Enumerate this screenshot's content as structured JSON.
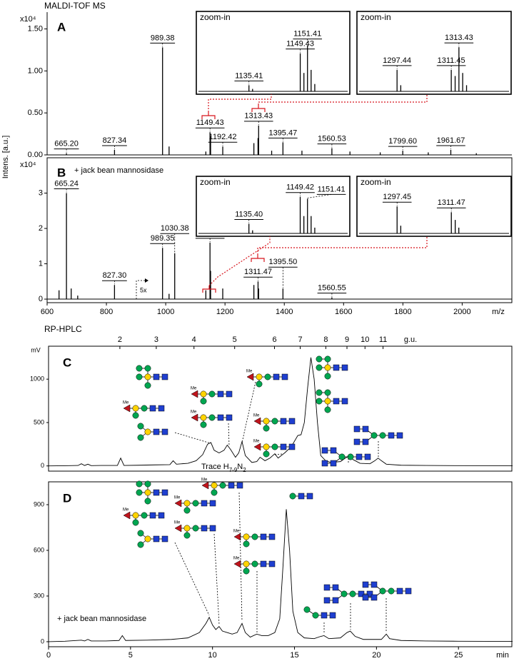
{
  "chart_data": [
    {
      "type": "spectrum",
      "panel": "A",
      "title": "MALDI-TOF MS",
      "ylabel": "Intens. [a.u.]",
      "y_multiplier": "x10⁴",
      "xlim": [
        600,
        2170
      ],
      "ylim": [
        0,
        1.7
      ],
      "yticks": [
        {
          "value": 0,
          "label": "0.00"
        },
        {
          "value": 0.5,
          "label": "0.50"
        },
        {
          "value": 1,
          "label": "1.00"
        },
        {
          "value": 1.5,
          "label": "1.50"
        }
      ],
      "color": "#000000",
      "x": [
        665.2,
        827.34,
        989.38,
        1011.4,
        1135.4,
        1149.43,
        1151.41,
        1192.42,
        1297.4,
        1311.4,
        1313.43,
        1357.4,
        1395.47,
        1459.5,
        1560.53,
        1621.5,
        1723.6,
        1799.6,
        1885.6,
        1961.67,
        2047.7
      ],
      "values": [
        0.02,
        0.06,
        1.28,
        0.1,
        0.04,
        0.27,
        0.22,
        0.1,
        0.14,
        0.2,
        0.35,
        0.05,
        0.15,
        0.05,
        0.08,
        0.04,
        0.03,
        0.05,
        0.03,
        0.06,
        0.02
      ],
      "peak_labels": [
        "665.20",
        "827.34",
        "989.38",
        null,
        null,
        "1149.43",
        null,
        "1192.42",
        null,
        null,
        "1313.43",
        null,
        "1395.47",
        null,
        "1560.53",
        null,
        null,
        "1799.60",
        null,
        "1961.67",
        null
      ],
      "insets": [
        {
          "title": "zoom-in",
          "xlim": [
            1122,
            1162
          ],
          "ylim": [
            0,
            1
          ],
          "x": [
            1135.41,
            1136.4,
            1149.43,
            1150.43,
            1151.41,
            1152.4,
            1153.4
          ],
          "values": [
            0.1,
            0.04,
            0.62,
            0.3,
            0.75,
            0.35,
            0.12
          ],
          "peak_labels": [
            "1135.41",
            null,
            "1149.43",
            null,
            "1151.41",
            null,
            null
          ]
        },
        {
          "title": "zoom-in",
          "xlim": [
            1288,
            1326
          ],
          "ylim": [
            0,
            1
          ],
          "x": [
            1297.44,
            1298.4,
            1311.45,
            1312.45,
            1313.43,
            1314.4,
            1315.4
          ],
          "values": [
            0.35,
            0.1,
            0.35,
            0.25,
            0.72,
            0.3,
            0.1
          ],
          "peak_labels": [
            "1297.44",
            null,
            "1311.45",
            null,
            "1313.43",
            null,
            null
          ]
        }
      ]
    },
    {
      "type": "spectrum",
      "panel": "B",
      "annotation": "+ jack bean mannosidase",
      "scale_note": "5x",
      "y_multiplier": "x10⁴",
      "xlim": [
        600,
        2170
      ],
      "ylim": [
        -0.1,
        4.0
      ],
      "xlabel": "m/z",
      "xticks": [
        600,
        800,
        1000,
        1200,
        1400,
        1600,
        1800,
        2000
      ],
      "yticks": [
        0,
        1,
        2,
        3
      ],
      "color": "#000000",
      "x": [
        640.2,
        665.24,
        681.2,
        703.2,
        827.3,
        989.35,
        1011.3,
        1030.38,
        1135.4,
        1149.42,
        1151.4,
        1192.4,
        1297.4,
        1311.47,
        1313.4,
        1395.5,
        1560.55
      ],
      "values": [
        0.25,
        3.0,
        0.3,
        0.1,
        0.4,
        1.45,
        0.15,
        1.3,
        0.25,
        1.6,
        0.8,
        0.3,
        0.4,
        0.5,
        0.3,
        0.3,
        0.05
      ],
      "peak_labels": [
        null,
        "665.24",
        null,
        null,
        "827.30",
        "989.35",
        null,
        "1030.38",
        null,
        "1149.42",
        null,
        null,
        null,
        "1311.47",
        null,
        "1395.50",
        "1560.55"
      ],
      "insets": [
        {
          "title": "zoom-in",
          "xlim": [
            1122,
            1162
          ],
          "ylim": [
            0,
            1
          ],
          "x": [
            1135.4,
            1136.4,
            1149.42,
            1150.42,
            1151.41,
            1152.4,
            1153.4
          ],
          "values": [
            0.25,
            0.08,
            0.95,
            0.45,
            0.9,
            0.45,
            0.15
          ],
          "peak_labels": [
            "1135.40",
            null,
            "1149.42",
            null,
            "1151.41",
            null,
            null
          ]
        },
        {
          "title": "zoom-in",
          "xlim": [
            1288,
            1326
          ],
          "ylim": [
            0,
            1
          ],
          "x": [
            1297.45,
            1298.4,
            1311.47,
            1312.47,
            1313.4
          ],
          "values": [
            0.7,
            0.2,
            0.55,
            0.35,
            0.15
          ],
          "peak_labels": [
            "1297.45",
            null,
            "1311.47",
            null,
            null
          ]
        }
      ]
    },
    {
      "type": "line",
      "panel": "C",
      "title": "RP-HPLC",
      "ylabel": "mV",
      "x2label": "g.u.",
      "mod_label": "Me",
      "annotation_parts": [
        "Trace H",
        "7-9",
        "N",
        "2"
      ],
      "xlim": [
        0,
        28.3
      ],
      "ylim": [
        -60,
        1380
      ],
      "yticks": [
        0,
        500,
        1000
      ],
      "x2ticks": [
        {
          "value": 4.35,
          "label": "2"
        },
        {
          "value": 6.57,
          "label": "3"
        },
        {
          "value": 8.87,
          "label": "4"
        },
        {
          "value": 11.35,
          "label": "5"
        },
        {
          "value": 13.78,
          "label": "6"
        },
        {
          "value": 15.35,
          "label": "7"
        },
        {
          "value": 16.91,
          "label": "8"
        },
        {
          "value": 18.2,
          "label": "9"
        },
        {
          "value": 19.3,
          "label": "10"
        },
        {
          "value": 20.4,
          "label": "11"
        }
      ],
      "color": "#000000",
      "x": [
        0,
        1,
        1.8,
        2.0,
        2.2,
        2.4,
        2.6,
        3.2,
        4.2,
        4.4,
        4.6,
        5.5,
        6.5,
        7.4,
        7.6,
        7.8,
        8.5,
        9.0,
        9.4,
        9.7,
        9.9,
        10.1,
        10.4,
        10.7,
        10.9,
        11.1,
        11.4,
        11.6,
        11.8,
        12.0,
        12.4,
        12.7,
        12.9,
        13.2,
        13.5,
        13.8,
        14.0,
        14.4,
        14.8,
        15.2,
        15.4,
        15.6,
        15.8,
        16.0,
        16.2,
        16.4,
        16.6,
        16.9,
        17.2,
        17.8,
        18.1,
        18.3,
        18.6,
        19.0,
        19.6,
        19.9,
        20.1,
        20.3,
        20.6,
        21.5,
        23,
        25,
        28.3
      ],
      "values": [
        0,
        2,
        5,
        25,
        5,
        20,
        3,
        5,
        5,
        90,
        5,
        8,
        12,
        15,
        60,
        20,
        30,
        60,
        130,
        250,
        270,
        180,
        150,
        180,
        240,
        190,
        100,
        150,
        280,
        120,
        40,
        50,
        100,
        60,
        90,
        140,
        90,
        150,
        220,
        350,
        360,
        500,
        900,
        1250,
        1000,
        500,
        120,
        60,
        40,
        50,
        90,
        110,
        70,
        30,
        25,
        60,
        90,
        60,
        20,
        8,
        5,
        3,
        2
      ]
    },
    {
      "type": "line",
      "panel": "D",
      "annotation": "+ jack bean mannosidase",
      "xlabel": "min",
      "mod_label": "Me",
      "xlim": [
        0,
        28.3
      ],
      "ylim": [
        -33,
        1050
      ],
      "xticks": [
        0,
        5,
        10,
        15,
        20,
        25
      ],
      "yticks": [
        0,
        300,
        600,
        900
      ],
      "color": "#000000",
      "x": [
        0,
        1,
        2,
        2.2,
        2.4,
        2.6,
        3.5,
        4.3,
        4.5,
        4.7,
        6,
        7.5,
        8.5,
        9.2,
        9.6,
        9.8,
        10.0,
        10.2,
        10.4,
        10.6,
        10.9,
        11.2,
        11.5,
        11.8,
        12.0,
        12.3,
        12.7,
        13.0,
        13.4,
        13.8,
        14.1,
        14.3,
        14.5,
        14.7,
        14.9,
        15.2,
        15.6,
        16.2,
        16.6,
        16.8,
        17.1,
        17.8,
        18.2,
        18.4,
        18.7,
        19.2,
        20.3,
        20.6,
        20.8,
        21.5,
        23,
        25,
        28.3
      ],
      "values": [
        0,
        3,
        10,
        5,
        15,
        5,
        5,
        8,
        40,
        8,
        10,
        15,
        25,
        60,
        120,
        160,
        110,
        80,
        100,
        70,
        60,
        50,
        60,
        120,
        60,
        30,
        50,
        40,
        40,
        60,
        150,
        500,
        870,
        600,
        200,
        60,
        25,
        20,
        35,
        40,
        20,
        25,
        60,
        70,
        35,
        15,
        15,
        50,
        20,
        8,
        5,
        3,
        2
      ]
    }
  ]
}
